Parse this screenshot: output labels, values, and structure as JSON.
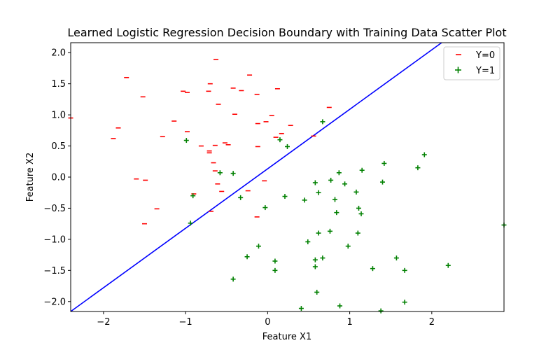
{
  "chart_data": {
    "type": "scatter",
    "title": "Learned Logistic Regression Decision Boundary with Training Data Scatter Plot",
    "xlabel": "Feature X1",
    "ylabel": "Feature X2",
    "xlim": [
      -2.4,
      2.88
    ],
    "ylim": [
      -2.16,
      2.16
    ],
    "xticks": [
      -2,
      -1,
      0,
      1,
      2
    ],
    "xtick_labels": [
      "−2",
      "−1",
      "0",
      "1",
      "2"
    ],
    "yticks": [
      -2.0,
      -1.5,
      -1.0,
      -0.5,
      0.0,
      0.5,
      1.0,
      1.5,
      2.0
    ],
    "ytick_labels": [
      "−2.0",
      "−1.5",
      "−1.0",
      "−0.5",
      "0.0",
      "0.5",
      "1.0",
      "1.5",
      "2.0"
    ],
    "legend_position": "top-right",
    "series": [
      {
        "name": "Y=0",
        "marker": "_",
        "color": "#ff0000",
        "points": [
          [
            -2.4,
            0.95
          ],
          [
            -1.72,
            1.6
          ],
          [
            -1.52,
            1.29
          ],
          [
            -1.82,
            0.79
          ],
          [
            -1.88,
            0.62
          ],
          [
            -1.28,
            0.65
          ],
          [
            -1.14,
            0.9
          ],
          [
            -1.03,
            1.38
          ],
          [
            -0.98,
            1.36
          ],
          [
            -0.98,
            0.73
          ],
          [
            -0.63,
            1.89
          ],
          [
            -0.7,
            1.5
          ],
          [
            -0.72,
            1.38
          ],
          [
            -0.6,
            1.17
          ],
          [
            -0.42,
            1.43
          ],
          [
            -0.32,
            1.39
          ],
          [
            -0.22,
            1.64
          ],
          [
            -0.13,
            1.33
          ],
          [
            -0.4,
            1.01
          ],
          [
            -0.12,
            0.86
          ],
          [
            -0.02,
            0.89
          ],
          [
            0.05,
            0.99
          ],
          [
            0.12,
            1.42
          ],
          [
            0.75,
            1.12
          ],
          [
            0.28,
            0.83
          ],
          [
            0.17,
            0.7
          ],
          [
            0.1,
            0.64
          ],
          [
            0.56,
            0.66
          ],
          [
            -0.12,
            0.49
          ],
          [
            -0.48,
            0.52
          ],
          [
            -0.52,
            0.55
          ],
          [
            -0.64,
            0.51
          ],
          [
            -0.81,
            0.5
          ],
          [
            -0.71,
            0.42
          ],
          [
            -0.71,
            0.39
          ],
          [
            -0.66,
            0.23
          ],
          [
            -0.64,
            0.1
          ],
          [
            -0.61,
            -0.11
          ],
          [
            -0.56,
            -0.23
          ],
          [
            -1.6,
            -0.03
          ],
          [
            -1.49,
            -0.05
          ],
          [
            -0.9,
            -0.27
          ],
          [
            -0.24,
            -0.22
          ],
          [
            -0.04,
            -0.06
          ],
          [
            -1.35,
            -0.51
          ],
          [
            -1.5,
            -0.75
          ],
          [
            -0.69,
            -0.55
          ],
          [
            -0.13,
            -0.64
          ]
        ]
      },
      {
        "name": "Y=1",
        "marker": "+",
        "color": "#008000",
        "points": [
          [
            -0.99,
            0.59
          ],
          [
            0.67,
            0.89
          ],
          [
            0.15,
            0.6
          ],
          [
            0.24,
            0.49
          ],
          [
            1.91,
            0.36
          ],
          [
            -0.58,
            0.07
          ],
          [
            -0.42,
            0.06
          ],
          [
            0.87,
            0.07
          ],
          [
            1.42,
            0.22
          ],
          [
            1.15,
            0.11
          ],
          [
            1.83,
            0.15
          ],
          [
            0.58,
            -0.09
          ],
          [
            0.77,
            -0.05
          ],
          [
            0.94,
            -0.11
          ],
          [
            1.4,
            -0.08
          ],
          [
            -0.91,
            -0.3
          ],
          [
            -0.33,
            -0.33
          ],
          [
            0.62,
            -0.25
          ],
          [
            0.21,
            -0.31
          ],
          [
            0.82,
            -0.36
          ],
          [
            1.08,
            -0.24
          ],
          [
            0.45,
            -0.37
          ],
          [
            -0.03,
            -0.49
          ],
          [
            0.84,
            -0.57
          ],
          [
            1.11,
            -0.5
          ],
          [
            1.14,
            -0.59
          ],
          [
            -0.94,
            -0.74
          ],
          [
            2.88,
            -0.77
          ],
          [
            0.62,
            -0.9
          ],
          [
            0.76,
            -0.87
          ],
          [
            1.1,
            -0.9
          ],
          [
            0.49,
            -1.04
          ],
          [
            -0.11,
            -1.11
          ],
          [
            0.98,
            -1.11
          ],
          [
            -0.25,
            -1.28
          ],
          [
            0.58,
            -1.33
          ],
          [
            0.67,
            -1.3
          ],
          [
            1.57,
            -1.3
          ],
          [
            0.09,
            -1.35
          ],
          [
            0.58,
            -1.44
          ],
          [
            1.28,
            -1.47
          ],
          [
            0.09,
            -1.5
          ],
          [
            1.67,
            -1.5
          ],
          [
            2.2,
            -1.42
          ],
          [
            -0.42,
            -1.64
          ],
          [
            0.6,
            -1.85
          ],
          [
            1.67,
            -2.01
          ],
          [
            0.88,
            -2.07
          ],
          [
            0.41,
            -2.11
          ],
          [
            1.38,
            -2.15
          ]
        ]
      },
      {
        "name": "decision_boundary",
        "type": "line",
        "color": "#0000ff",
        "x": [
          -2.4,
          2.12
        ],
        "y": [
          -2.16,
          2.16
        ]
      }
    ]
  }
}
